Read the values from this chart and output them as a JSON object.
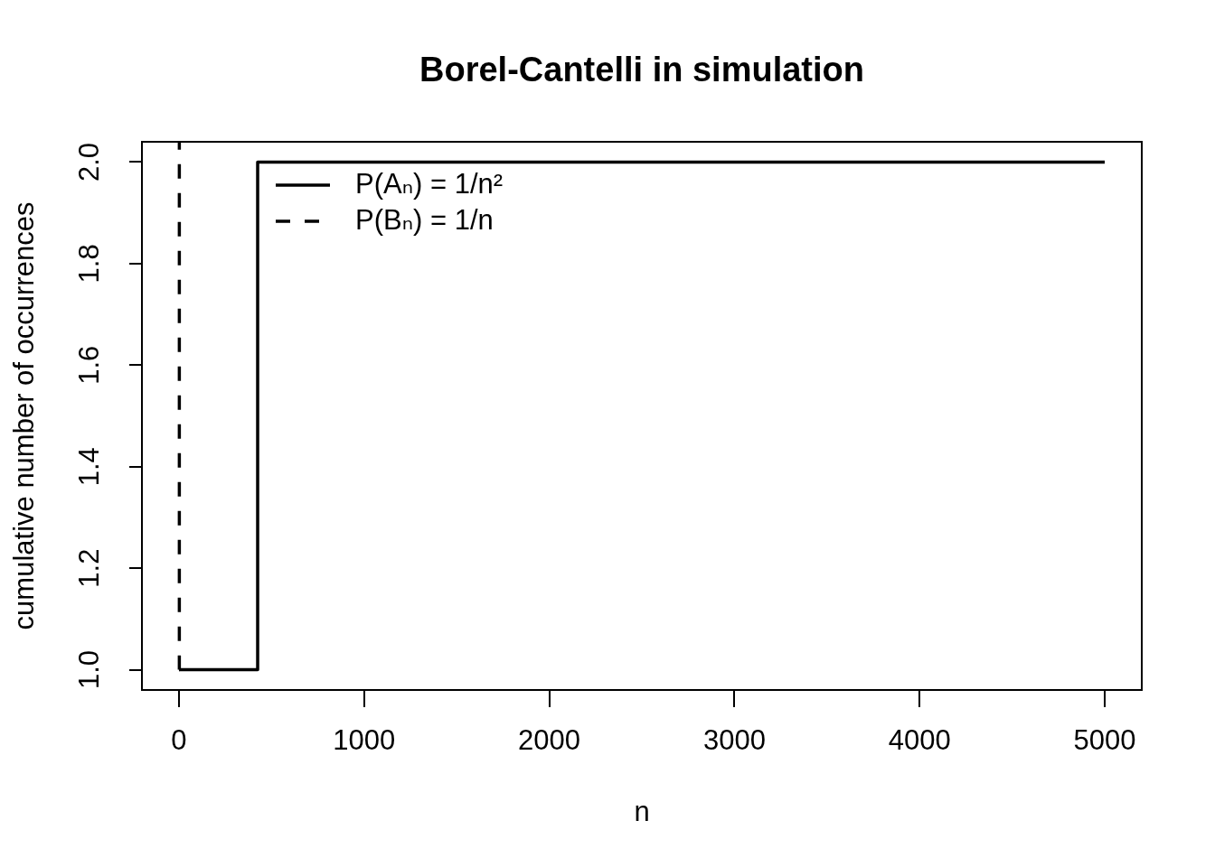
{
  "chart_data": {
    "type": "step",
    "title": "Borel-Cantelli in simulation",
    "xlabel": "n",
    "ylabel": "cumulative number of occurrences",
    "series": [
      {
        "name": "P(Aₙ) = 1/n²",
        "color": "#000000",
        "line_style": "solid",
        "x": [
          1,
          425,
          5000
        ],
        "values": [
          1,
          2,
          2
        ]
      },
      {
        "name": "P(Bₙ) = 1/n",
        "color": "#000000",
        "line_style": "dashed",
        "x": [
          1,
          2
        ],
        "values": [
          1,
          2.04
        ]
      }
    ],
    "xlim": [
      -200,
      5200
    ],
    "xticks": [
      0,
      1000,
      2000,
      3000,
      4000,
      5000
    ],
    "ylim": [
      0.96,
      2.04
    ],
    "yticks": [
      {
        "value": 1,
        "label": "1.0"
      },
      1.2,
      1.4,
      1.6,
      1.8,
      {
        "value": 2,
        "label": "2.0"
      }
    ],
    "legend": "top left"
  }
}
